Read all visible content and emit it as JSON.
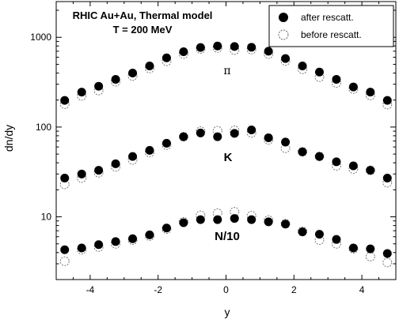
{
  "chart_data": {
    "type": "scatter",
    "title": "",
    "annotation_lines": [
      "RHIC Au+Au, Thermal model",
      "T = 200 MeV"
    ],
    "xlabel": "y",
    "ylabel": "dn/dy",
    "xlim": [
      -5,
      5
    ],
    "ylim": [
      2,
      2500
    ],
    "y_scale": "log",
    "grid": false,
    "legend_position": "top-right",
    "x_ticks": [
      -4,
      -2,
      0,
      2,
      4
    ],
    "x_tick_labels": [
      "-4",
      "-2",
      "0",
      "2",
      "4"
    ],
    "y_ticks": [
      10,
      100,
      1000
    ],
    "y_tick_labels": [
      "10",
      "100",
      "1000"
    ],
    "x": [
      -4.75,
      -4.25,
      -3.75,
      -3.25,
      -2.75,
      -2.25,
      -1.75,
      -1.25,
      -0.75,
      -0.25,
      0.25,
      0.75,
      1.25,
      1.75,
      2.25,
      2.75,
      3.25,
      3.75,
      4.25,
      4.75
    ],
    "groups": [
      {
        "label": "π",
        "after": [
          198,
          245,
          285,
          340,
          400,
          480,
          590,
          690,
          770,
          800,
          790,
          775,
          700,
          580,
          480,
          410,
          340,
          280,
          245,
          198
        ],
        "before": [
          180,
          222,
          255,
          320,
          370,
          450,
          540,
          650,
          740,
          760,
          720,
          730,
          650,
          545,
          440,
          360,
          310,
          265,
          225,
          178
        ]
      },
      {
        "label": "K",
        "after": [
          27,
          30,
          33,
          39,
          47,
          55,
          66,
          78,
          86,
          78,
          85,
          93,
          76,
          68,
          53,
          47,
          41,
          37,
          33,
          27
        ],
        "before": [
          23,
          27,
          31,
          36,
          43,
          52,
          63,
          78,
          90,
          91,
          92,
          86,
          72,
          58,
          53,
          47,
          37,
          34,
          33,
          24
        ]
      },
      {
        "label": "N/10",
        "after": [
          4.3,
          4.5,
          4.9,
          5.3,
          5.7,
          6.3,
          7.5,
          8.6,
          9.3,
          9.3,
          9.6,
          9.3,
          8.8,
          8.3,
          6.8,
          6.4,
          5.6,
          4.5,
          4.4,
          3.9
        ],
        "before": [
          3.2,
          4.3,
          4.6,
          5.0,
          5.5,
          6.1,
          7.3,
          8.8,
          10.4,
          11.0,
          11.4,
          10.3,
          9.2,
          8.4,
          6.9,
          5.5,
          5.0,
          4.4,
          3.6,
          3.1
        ]
      }
    ],
    "series": [
      {
        "name": "after rescatt.",
        "marker": "filled-circle",
        "color": "#000000"
      },
      {
        "name": "before rescatt.",
        "marker": "open-dashed-circle",
        "color": "#666666"
      }
    ]
  }
}
